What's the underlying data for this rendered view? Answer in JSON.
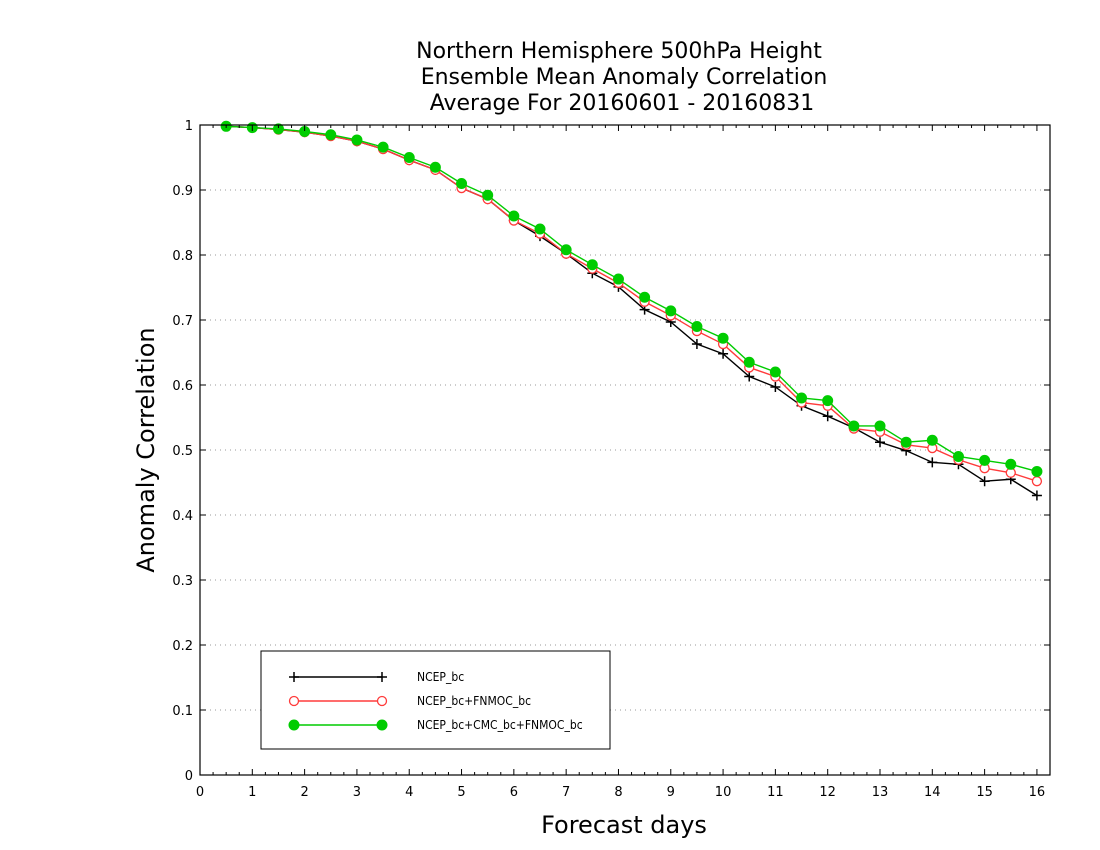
{
  "chart_data": {
    "type": "line",
    "title_lines": [
      "Northern Hemisphere 500hPa Height",
      "Ensemble Mean Anomaly Correlation",
      "Average For 20160601 - 20160831"
    ],
    "xlabel": "Forecast days",
    "ylabel": "Anomaly Correlation",
    "xlim": [
      0,
      16.25
    ],
    "ylim": [
      0,
      1
    ],
    "x_ticks": [
      0,
      1,
      2,
      3,
      4,
      5,
      6,
      7,
      8,
      9,
      10,
      11,
      12,
      13,
      14,
      15,
      16
    ],
    "y_ticks": [
      0,
      0.1,
      0.2,
      0.3,
      0.4,
      0.5,
      0.6,
      0.7,
      0.8,
      0.9,
      1
    ],
    "y_tick_labels": [
      "0",
      "0.1",
      "0.2",
      "0.3",
      "0.4",
      "0.5",
      "0.6",
      "0.7",
      "0.8",
      "0.9",
      "1"
    ],
    "grid": "horizontal dotted",
    "legend_position": "bottom-left",
    "x": [
      0.5,
      1,
      1.5,
      2,
      2.5,
      3,
      3.5,
      4,
      4.5,
      5,
      5.5,
      6,
      6.5,
      7,
      7.5,
      8,
      8.5,
      9,
      9.5,
      10,
      10.5,
      11,
      11.5,
      12,
      12.5,
      13,
      13.5,
      14,
      14.5,
      15,
      15.5,
      16
    ],
    "series": [
      {
        "name": "NCEP_bc",
        "color": "#000000",
        "marker": "plus",
        "values": [
          0.998,
          0.996,
          0.993,
          0.989,
          0.983,
          0.975,
          0.963,
          0.946,
          0.931,
          0.903,
          0.886,
          0.853,
          0.829,
          0.802,
          0.772,
          0.751,
          0.716,
          0.697,
          0.663,
          0.648,
          0.613,
          0.597,
          0.568,
          0.552,
          0.534,
          0.512,
          0.499,
          0.481,
          0.478,
          0.452,
          0.455,
          0.43
        ]
      },
      {
        "name": "NCEP_bc+FNMOC_bc",
        "color": "#ff3b3b",
        "marker": "open-circle",
        "values": [
          0.998,
          0.996,
          0.993,
          0.989,
          0.983,
          0.975,
          0.963,
          0.946,
          0.931,
          0.903,
          0.886,
          0.853,
          0.833,
          0.802,
          0.779,
          0.757,
          0.728,
          0.707,
          0.683,
          0.663,
          0.627,
          0.613,
          0.573,
          0.568,
          0.533,
          0.528,
          0.508,
          0.503,
          0.485,
          0.472,
          0.465,
          0.452
        ]
      },
      {
        "name": "NCEP_bc+CMC_bc+FNMOC_bc",
        "color": "#00cc00",
        "marker": "filled-circle",
        "values": [
          0.998,
          0.996,
          0.994,
          0.99,
          0.985,
          0.977,
          0.966,
          0.95,
          0.935,
          0.91,
          0.892,
          0.86,
          0.84,
          0.808,
          0.785,
          0.763,
          0.735,
          0.714,
          0.69,
          0.672,
          0.635,
          0.62,
          0.58,
          0.576,
          0.537,
          0.537,
          0.512,
          0.515,
          0.49,
          0.484,
          0.478,
          0.467
        ]
      }
    ]
  }
}
